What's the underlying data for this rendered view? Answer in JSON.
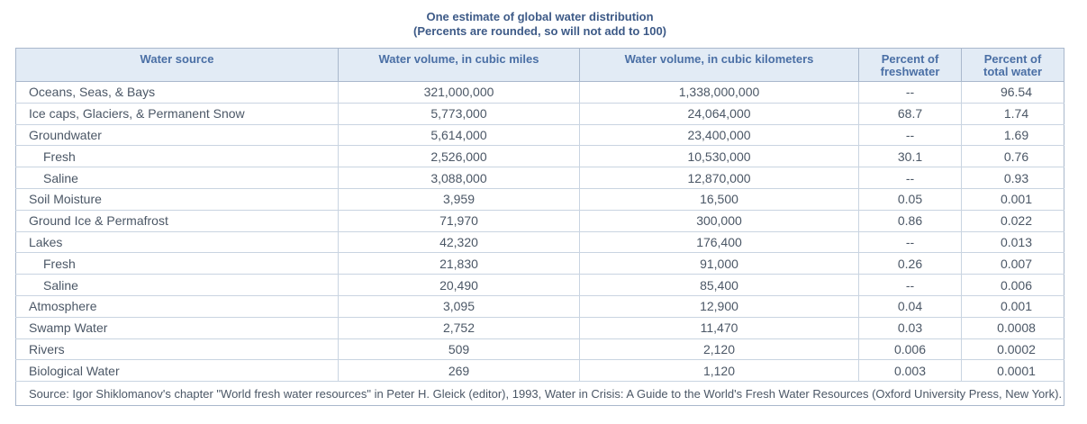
{
  "title": {
    "line1": "One estimate of global water distribution",
    "line2": "(Percents are rounded, so will not add to 100)"
  },
  "table": {
    "headers": [
      "Water source",
      "Water volume, in cubic miles",
      "Water volume, in cubic kilometers",
      "Percent of\nfreshwater",
      "Percent of\ntotal water"
    ],
    "rows": [
      {
        "source": "Oceans, Seas, & Bays",
        "indent": false,
        "miles": "321,000,000",
        "km": "1,338,000,000",
        "pct_fresh": "--",
        "pct_total": "96.54"
      },
      {
        "source": "Ice caps, Glaciers, & Permanent Snow",
        "indent": false,
        "miles": "5,773,000",
        "km": "24,064,000",
        "pct_fresh": "68.7",
        "pct_total": "1.74"
      },
      {
        "source": "Groundwater",
        "indent": false,
        "miles": "5,614,000",
        "km": "23,400,000",
        "pct_fresh": "--",
        "pct_total": "1.69"
      },
      {
        "source": "Fresh",
        "indent": true,
        "miles": "2,526,000",
        "km": "10,530,000",
        "pct_fresh": "30.1",
        "pct_total": "0.76"
      },
      {
        "source": "Saline",
        "indent": true,
        "miles": "3,088,000",
        "km": "12,870,000",
        "pct_fresh": "--",
        "pct_total": "0.93"
      },
      {
        "source": "Soil Moisture",
        "indent": false,
        "miles": "3,959",
        "km": "16,500",
        "pct_fresh": "0.05",
        "pct_total": "0.001"
      },
      {
        "source": "Ground Ice & Permafrost",
        "indent": false,
        "miles": "71,970",
        "km": "300,000",
        "pct_fresh": "0.86",
        "pct_total": "0.022"
      },
      {
        "source": "Lakes",
        "indent": false,
        "miles": "42,320",
        "km": "176,400",
        "pct_fresh": "--",
        "pct_total": "0.013"
      },
      {
        "source": "Fresh",
        "indent": true,
        "miles": "21,830",
        "km": "91,000",
        "pct_fresh": "0.26",
        "pct_total": "0.007"
      },
      {
        "source": "Saline",
        "indent": true,
        "miles": "20,490",
        "km": "85,400",
        "pct_fresh": "--",
        "pct_total": "0.006"
      },
      {
        "source": "Atmosphere",
        "indent": false,
        "miles": "3,095",
        "km": "12,900",
        "pct_fresh": "0.04",
        "pct_total": "0.001"
      },
      {
        "source": "Swamp Water",
        "indent": false,
        "miles": "2,752",
        "km": "11,470",
        "pct_fresh": "0.03",
        "pct_total": "0.0008"
      },
      {
        "source": "Rivers",
        "indent": false,
        "miles": "509",
        "km": "2,120",
        "pct_fresh": "0.006",
        "pct_total": "0.0002"
      },
      {
        "source": "Biological Water",
        "indent": false,
        "miles": "269",
        "km": "1,120",
        "pct_fresh": "0.003",
        "pct_total": "0.0001"
      }
    ],
    "source_note": "Source: Igor Shiklomanov's chapter \"World fresh water resources\" in Peter H. Gleick (editor), 1993, Water in Crisis: A Guide to the World's Fresh Water Resources (Oxford University Press, New York)."
  },
  "colors": {
    "title": "#3d5a87",
    "header_bg": "#e2ebf5",
    "header_text": "#4a6fa5",
    "border": "#a9b8cc",
    "body_text": "#4b5766"
  }
}
